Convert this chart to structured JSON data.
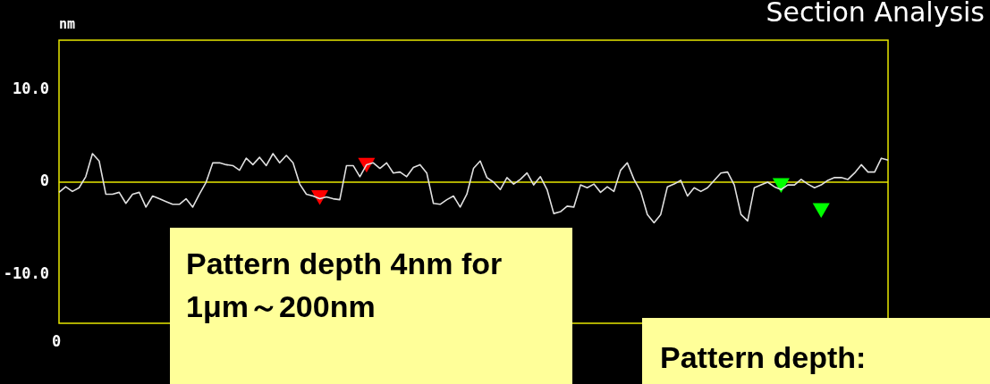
{
  "chart_data": {
    "type": "line",
    "title": "Section Analysis",
    "ylabel": "nm",
    "categories": [
      null,
      null,
      null,
      null,
      null,
      null,
      null,
      null,
      null,
      null,
      null,
      null,
      null,
      null,
      null,
      null,
      null,
      null,
      null,
      null,
      null,
      null,
      null,
      null,
      null,
      null,
      null,
      null,
      null,
      null,
      null,
      null,
      null,
      null,
      null,
      null,
      null,
      null,
      null,
      null,
      null,
      null,
      null,
      null,
      null,
      null,
      null,
      null,
      null,
      null,
      null,
      null,
      null,
      null,
      null,
      null,
      null,
      null,
      null,
      null,
      null,
      null,
      null,
      null,
      null,
      null,
      null,
      null,
      null,
      null,
      null,
      null,
      null,
      null,
      null,
      null,
      null,
      null,
      null,
      null,
      null,
      null,
      null,
      null,
      null,
      null,
      null,
      null,
      null,
      null,
      null,
      null,
      null,
      null,
      null,
      null,
      null,
      null,
      null,
      null,
      null,
      null,
      null,
      null,
      null,
      null,
      null,
      null,
      null,
      null,
      null,
      null,
      null,
      null,
      null,
      null,
      null,
      null,
      null,
      null,
      null,
      null,
      null,
      null,
      null
    ],
    "series": [
      {
        "type": "line",
        "color": "#e0e0e0",
        "marker": "none",
        "values": [
          -1.1,
          -0.5,
          -1,
          -0.6,
          0.6,
          3.1,
          2.3,
          -1.3,
          -1.3,
          -1.1,
          -2.3,
          -1.3,
          -1.1,
          -2.7,
          -1.5,
          -1.8,
          -2.1,
          -2.4,
          -2.4,
          -1.8,
          -2.7,
          -1.3,
          0,
          2.1,
          2.1,
          1.9,
          1.8,
          1.3,
          2.6,
          1.9,
          2.7,
          1.8,
          3.1,
          2.1,
          2.9,
          2.1,
          -0.2,
          -1.3,
          -1.5,
          -1.8,
          -1.6,
          -1.8,
          -1.9,
          1.8,
          1.8,
          0.6,
          1.9,
          2.1,
          1.5,
          2.1,
          1,
          1.1,
          0.6,
          1.6,
          1.9,
          1,
          -2.3,
          -2.4,
          -1.9,
          -1.5,
          -2.7,
          -1.3,
          1.5,
          2.3,
          0.5,
          0,
          -0.8,
          0.5,
          -0.2,
          0.3,
          1,
          -0.3,
          0.6,
          -0.8,
          -3.4,
          -3.2,
          -2.6,
          -2.7,
          -0.3,
          -0.6,
          -0.2,
          -1.1,
          -0.5,
          -1,
          1.3,
          2.1,
          0.3,
          -1,
          -3.5,
          -4.4,
          -3.5,
          -0.5,
          -0.2,
          0.2,
          -1.5,
          -0.6,
          -1,
          -0.6,
          0.2,
          1,
          1.1,
          -0.3,
          -3.5,
          -4.2,
          -0.6,
          -0.3,
          0,
          -0.5,
          -0.8,
          -0.3,
          -0.3,
          0.3,
          -0.2,
          -0.6,
          -0.3,
          0.2,
          0.5,
          0.5,
          0.3,
          1,
          1.9,
          1.1,
          1.1,
          2.6,
          2.4
        ]
      },
      {
        "type": "scatter",
        "color": "#ff0000",
        "marker": "triangle",
        "values": [
          null,
          null,
          null,
          null,
          null,
          null,
          null,
          null,
          null,
          null,
          null,
          null,
          null,
          null,
          null,
          null,
          null,
          null,
          null,
          null,
          null,
          null,
          null,
          null,
          null,
          null,
          null,
          null,
          null,
          null,
          null,
          null,
          null,
          null,
          null,
          null,
          null,
          null,
          null,
          -1.4,
          null,
          null,
          null,
          null,
          null,
          null,
          2.1,
          null,
          null,
          null,
          null,
          null,
          null,
          null,
          null,
          null,
          null,
          null,
          null,
          null,
          null,
          null,
          null,
          null,
          null,
          null,
          null,
          null,
          null,
          null,
          null,
          null,
          null,
          null,
          null,
          null,
          null,
          null,
          null,
          null,
          null,
          null,
          null,
          null,
          null,
          null,
          null,
          null,
          null,
          null,
          null,
          null,
          null,
          null,
          null,
          null,
          null,
          null,
          null,
          null,
          null,
          null,
          null,
          null,
          null,
          null,
          null,
          null,
          null,
          null,
          null,
          null,
          null,
          null,
          null,
          null,
          null,
          null,
          null,
          null,
          null,
          null,
          null,
          null,
          null
        ]
      },
      {
        "type": "scatter",
        "color": "#00ff00",
        "marker": "triangle",
        "values": [
          null,
          null,
          null,
          null,
          null,
          null,
          null,
          null,
          null,
          null,
          null,
          null,
          null,
          null,
          null,
          null,
          null,
          null,
          null,
          null,
          null,
          null,
          null,
          null,
          null,
          null,
          null,
          null,
          null,
          null,
          null,
          null,
          null,
          null,
          null,
          null,
          null,
          null,
          null,
          null,
          null,
          null,
          null,
          null,
          null,
          null,
          null,
          null,
          null,
          null,
          null,
          null,
          null,
          null,
          null,
          null,
          null,
          null,
          null,
          null,
          null,
          null,
          null,
          null,
          null,
          null,
          null,
          null,
          null,
          null,
          null,
          null,
          null,
          null,
          null,
          null,
          null,
          null,
          null,
          null,
          null,
          null,
          null,
          null,
          null,
          null,
          null,
          null,
          null,
          null,
          null,
          null,
          null,
          null,
          null,
          null,
          null,
          null,
          null,
          null,
          null,
          null,
          null,
          null,
          null,
          null,
          null,
          null,
          -0.1,
          null,
          null,
          null,
          null,
          null,
          -2.8,
          null,
          null,
          null,
          null,
          null,
          null,
          null,
          null,
          null,
          null
        ]
      }
    ],
    "ylim": [
      -15.3,
      15.4
    ],
    "yticks": [
      {
        "value": 10,
        "label": "10.0"
      },
      0,
      {
        "value": -10,
        "label": "-10.0"
      }
    ],
    "ref_lines": [
      {
        "axis": "y",
        "value": 0,
        "color": "#e8e800"
      }
    ],
    "annotations": [
      "0",
      "Pattern depth 4nm for 1μm～200nm",
      "Pattern depth:"
    ],
    "grid": false,
    "legend": false
  }
}
